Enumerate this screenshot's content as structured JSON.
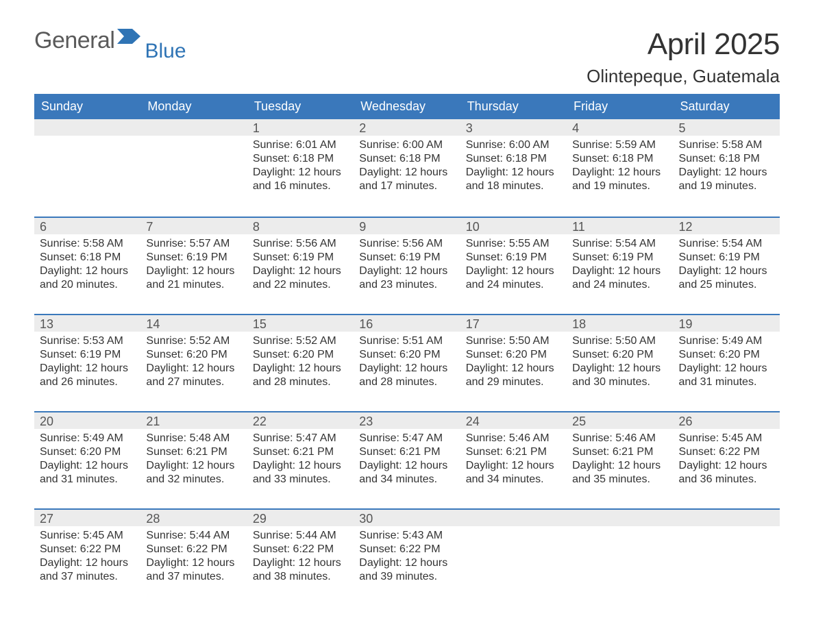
{
  "logo": {
    "word1": "General",
    "word2": "Blue",
    "word1_color": "#5a5a5a",
    "word2_color": "#2f74b5",
    "flag_color": "#2f74b5"
  },
  "title": {
    "month": "April 2025",
    "location": "Olintepeque, Guatemala"
  },
  "colors": {
    "header_bg": "#3a78bb",
    "header_text": "#ffffff",
    "daynum_bg": "#ececec",
    "daynum_text": "#555555",
    "body_text": "#333333",
    "row_divider": "#3a78bb",
    "page_bg": "#ffffff"
  },
  "typography": {
    "title_fontsize": 44,
    "location_fontsize": 26,
    "dow_fontsize": 18,
    "daynum_fontsize": 18,
    "body_fontsize": 16,
    "font_family": "Arial, Helvetica, sans-serif"
  },
  "days_of_week": [
    "Sunday",
    "Monday",
    "Tuesday",
    "Wednesday",
    "Thursday",
    "Friday",
    "Saturday"
  ],
  "weeks": [
    [
      null,
      null,
      {
        "num": "1",
        "sunrise": "Sunrise: 6:01 AM",
        "sunset": "Sunset: 6:18 PM",
        "day1": "Daylight: 12 hours",
        "day2": "and 16 minutes."
      },
      {
        "num": "2",
        "sunrise": "Sunrise: 6:00 AM",
        "sunset": "Sunset: 6:18 PM",
        "day1": "Daylight: 12 hours",
        "day2": "and 17 minutes."
      },
      {
        "num": "3",
        "sunrise": "Sunrise: 6:00 AM",
        "sunset": "Sunset: 6:18 PM",
        "day1": "Daylight: 12 hours",
        "day2": "and 18 minutes."
      },
      {
        "num": "4",
        "sunrise": "Sunrise: 5:59 AM",
        "sunset": "Sunset: 6:18 PM",
        "day1": "Daylight: 12 hours",
        "day2": "and 19 minutes."
      },
      {
        "num": "5",
        "sunrise": "Sunrise: 5:58 AM",
        "sunset": "Sunset: 6:18 PM",
        "day1": "Daylight: 12 hours",
        "day2": "and 19 minutes."
      }
    ],
    [
      {
        "num": "6",
        "sunrise": "Sunrise: 5:58 AM",
        "sunset": "Sunset: 6:18 PM",
        "day1": "Daylight: 12 hours",
        "day2": "and 20 minutes."
      },
      {
        "num": "7",
        "sunrise": "Sunrise: 5:57 AM",
        "sunset": "Sunset: 6:19 PM",
        "day1": "Daylight: 12 hours",
        "day2": "and 21 minutes."
      },
      {
        "num": "8",
        "sunrise": "Sunrise: 5:56 AM",
        "sunset": "Sunset: 6:19 PM",
        "day1": "Daylight: 12 hours",
        "day2": "and 22 minutes."
      },
      {
        "num": "9",
        "sunrise": "Sunrise: 5:56 AM",
        "sunset": "Sunset: 6:19 PM",
        "day1": "Daylight: 12 hours",
        "day2": "and 23 minutes."
      },
      {
        "num": "10",
        "sunrise": "Sunrise: 5:55 AM",
        "sunset": "Sunset: 6:19 PM",
        "day1": "Daylight: 12 hours",
        "day2": "and 24 minutes."
      },
      {
        "num": "11",
        "sunrise": "Sunrise: 5:54 AM",
        "sunset": "Sunset: 6:19 PM",
        "day1": "Daylight: 12 hours",
        "day2": "and 24 minutes."
      },
      {
        "num": "12",
        "sunrise": "Sunrise: 5:54 AM",
        "sunset": "Sunset: 6:19 PM",
        "day1": "Daylight: 12 hours",
        "day2": "and 25 minutes."
      }
    ],
    [
      {
        "num": "13",
        "sunrise": "Sunrise: 5:53 AM",
        "sunset": "Sunset: 6:19 PM",
        "day1": "Daylight: 12 hours",
        "day2": "and 26 minutes."
      },
      {
        "num": "14",
        "sunrise": "Sunrise: 5:52 AM",
        "sunset": "Sunset: 6:20 PM",
        "day1": "Daylight: 12 hours",
        "day2": "and 27 minutes."
      },
      {
        "num": "15",
        "sunrise": "Sunrise: 5:52 AM",
        "sunset": "Sunset: 6:20 PM",
        "day1": "Daylight: 12 hours",
        "day2": "and 28 minutes."
      },
      {
        "num": "16",
        "sunrise": "Sunrise: 5:51 AM",
        "sunset": "Sunset: 6:20 PM",
        "day1": "Daylight: 12 hours",
        "day2": "and 28 minutes."
      },
      {
        "num": "17",
        "sunrise": "Sunrise: 5:50 AM",
        "sunset": "Sunset: 6:20 PM",
        "day1": "Daylight: 12 hours",
        "day2": "and 29 minutes."
      },
      {
        "num": "18",
        "sunrise": "Sunrise: 5:50 AM",
        "sunset": "Sunset: 6:20 PM",
        "day1": "Daylight: 12 hours",
        "day2": "and 30 minutes."
      },
      {
        "num": "19",
        "sunrise": "Sunrise: 5:49 AM",
        "sunset": "Sunset: 6:20 PM",
        "day1": "Daylight: 12 hours",
        "day2": "and 31 minutes."
      }
    ],
    [
      {
        "num": "20",
        "sunrise": "Sunrise: 5:49 AM",
        "sunset": "Sunset: 6:20 PM",
        "day1": "Daylight: 12 hours",
        "day2": "and 31 minutes."
      },
      {
        "num": "21",
        "sunrise": "Sunrise: 5:48 AM",
        "sunset": "Sunset: 6:21 PM",
        "day1": "Daylight: 12 hours",
        "day2": "and 32 minutes."
      },
      {
        "num": "22",
        "sunrise": "Sunrise: 5:47 AM",
        "sunset": "Sunset: 6:21 PM",
        "day1": "Daylight: 12 hours",
        "day2": "and 33 minutes."
      },
      {
        "num": "23",
        "sunrise": "Sunrise: 5:47 AM",
        "sunset": "Sunset: 6:21 PM",
        "day1": "Daylight: 12 hours",
        "day2": "and 34 minutes."
      },
      {
        "num": "24",
        "sunrise": "Sunrise: 5:46 AM",
        "sunset": "Sunset: 6:21 PM",
        "day1": "Daylight: 12 hours",
        "day2": "and 34 minutes."
      },
      {
        "num": "25",
        "sunrise": "Sunrise: 5:46 AM",
        "sunset": "Sunset: 6:21 PM",
        "day1": "Daylight: 12 hours",
        "day2": "and 35 minutes."
      },
      {
        "num": "26",
        "sunrise": "Sunrise: 5:45 AM",
        "sunset": "Sunset: 6:22 PM",
        "day1": "Daylight: 12 hours",
        "day2": "and 36 minutes."
      }
    ],
    [
      {
        "num": "27",
        "sunrise": "Sunrise: 5:45 AM",
        "sunset": "Sunset: 6:22 PM",
        "day1": "Daylight: 12 hours",
        "day2": "and 37 minutes."
      },
      {
        "num": "28",
        "sunrise": "Sunrise: 5:44 AM",
        "sunset": "Sunset: 6:22 PM",
        "day1": "Daylight: 12 hours",
        "day2": "and 37 minutes."
      },
      {
        "num": "29",
        "sunrise": "Sunrise: 5:44 AM",
        "sunset": "Sunset: 6:22 PM",
        "day1": "Daylight: 12 hours",
        "day2": "and 38 minutes."
      },
      {
        "num": "30",
        "sunrise": "Sunrise: 5:43 AM",
        "sunset": "Sunset: 6:22 PM",
        "day1": "Daylight: 12 hours",
        "day2": "and 39 minutes."
      },
      null,
      null,
      null
    ]
  ]
}
